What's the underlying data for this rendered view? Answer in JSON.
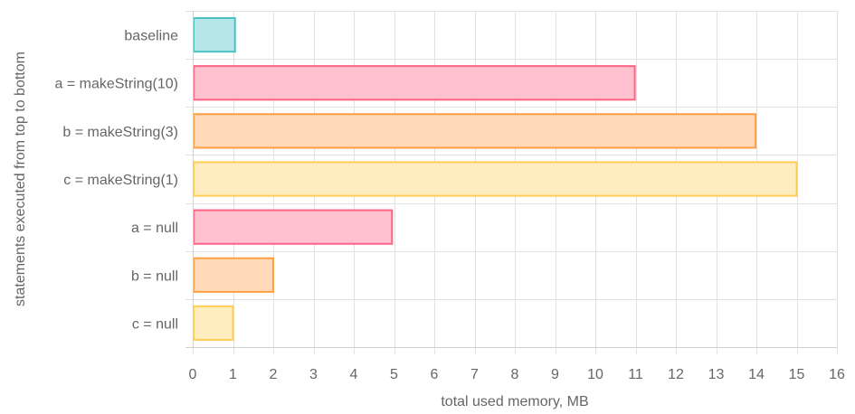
{
  "chart_data": {
    "type": "bar",
    "orientation": "horizontal",
    "categories": [
      "baseline",
      "a = makeString(10)",
      "b = makeString(3)",
      "c = makeString(1)",
      "a = null",
      "b = null",
      "c = null"
    ],
    "values": [
      1.05,
      10.98,
      13.98,
      15.0,
      4.95,
      2.0,
      1.0
    ],
    "colors": [
      {
        "fill": "#b7e6e8",
        "stroke": "#4bc0c0"
      },
      {
        "fill": "#ffc0cf",
        "stroke": "#ff6384"
      },
      {
        "fill": "#ffd9b8",
        "stroke": "#ff9f40"
      },
      {
        "fill": "#ffedc0",
        "stroke": "#ffcd56"
      },
      {
        "fill": "#ffc0cf",
        "stroke": "#ff6384"
      },
      {
        "fill": "#ffd9b8",
        "stroke": "#ff9f40"
      },
      {
        "fill": "#ffedc0",
        "stroke": "#ffcd56"
      }
    ],
    "xlabel": "total used memory, MB",
    "ylabel": "statements executed from top to bottom",
    "xlim": [
      0,
      16
    ],
    "xticks": [
      "0",
      "1",
      "2",
      "3",
      "4",
      "5",
      "6",
      "7",
      "8",
      "9",
      "10",
      "11",
      "12",
      "13",
      "14",
      "15",
      "16"
    ],
    "grid": true,
    "legend": "none"
  }
}
